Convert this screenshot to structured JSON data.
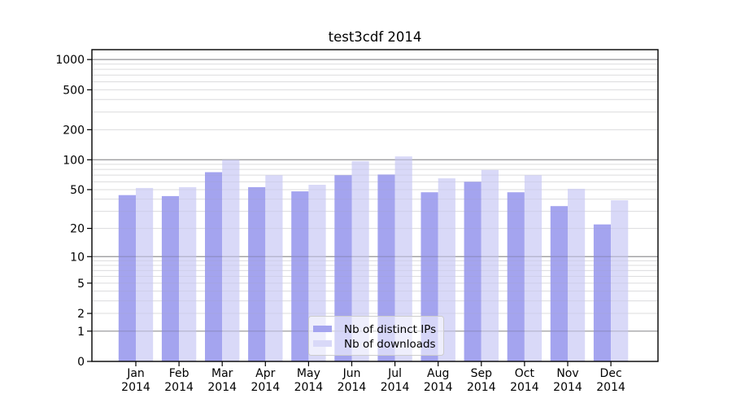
{
  "chart_data": {
    "type": "bar",
    "title": "test3cdf 2014",
    "categories": [
      {
        "month": "Jan",
        "year": "2014"
      },
      {
        "month": "Feb",
        "year": "2014"
      },
      {
        "month": "Mar",
        "year": "2014"
      },
      {
        "month": "Apr",
        "year": "2014"
      },
      {
        "month": "May",
        "year": "2014"
      },
      {
        "month": "Jun",
        "year": "2014"
      },
      {
        "month": "Jul",
        "year": "2014"
      },
      {
        "month": "Aug",
        "year": "2014"
      },
      {
        "month": "Sep",
        "year": "2014"
      },
      {
        "month": "Oct",
        "year": "2014"
      },
      {
        "month": "Nov",
        "year": "2014"
      },
      {
        "month": "Dec",
        "year": "2014"
      }
    ],
    "series": [
      {
        "name": "Nb of distinct IPs",
        "color": "#a4a4ef",
        "values": [
          44,
          43,
          75,
          53,
          48,
          70,
          71,
          47,
          60,
          47,
          34,
          22
        ]
      },
      {
        "name": "Nb of downloads",
        "color": "#d9d9f8",
        "values": [
          52,
          53,
          100,
          70,
          56,
          97,
          108,
          65,
          79,
          70,
          51,
          39
        ]
      }
    ],
    "yticks": [
      1000,
      500,
      200,
      100,
      50,
      20,
      10,
      5,
      2,
      1,
      0
    ],
    "yscale": "log10(1+v)",
    "ylim": [
      0,
      1000
    ],
    "xlabel": "",
    "ylabel": "",
    "grid": "horizontal major+minor",
    "legend_position": "bottom-center",
    "colors": {
      "major_grid": "#b0b0b0",
      "minor_grid": "#eaeaea",
      "axis": "#000000",
      "legend_border": "#cccccc"
    }
  }
}
